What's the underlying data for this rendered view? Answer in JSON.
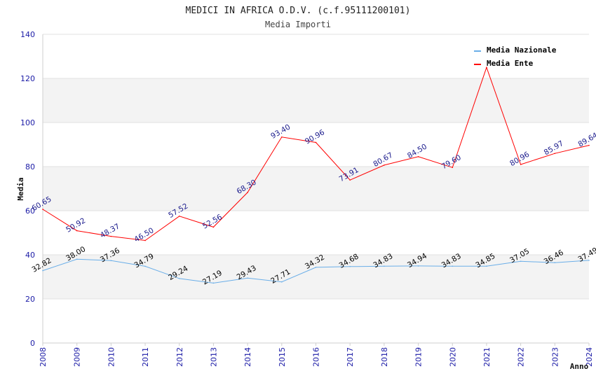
{
  "chart_data": {
    "type": "line",
    "title": "MEDICI IN AFRICA O.D.V. (c.f.95111200101)",
    "subtitle": "Media Importi",
    "xlabel": "Anno",
    "ylabel": "Media",
    "categories": [
      "2008",
      "2009",
      "2010",
      "2011",
      "2012",
      "2013",
      "2014",
      "2015",
      "2016",
      "2017",
      "2018",
      "2019",
      "2020",
      "2021",
      "2022",
      "2023",
      "2024"
    ],
    "ylim": [
      0,
      140
    ],
    "yticks": [
      0,
      20,
      40,
      60,
      80,
      100,
      120,
      140
    ],
    "grid": "horizontal alternating bands",
    "legend_position": "top-right",
    "series": [
      {
        "name": "Media Nazionale",
        "color": "#6aaee8",
        "label_color": "#000000",
        "values": [
          32.82,
          38.0,
          37.36,
          34.79,
          29.24,
          27.19,
          29.43,
          27.71,
          34.32,
          34.68,
          34.83,
          34.94,
          34.83,
          34.85,
          37.05,
          36.46,
          37.49
        ],
        "labels": [
          "32.82",
          "38.00",
          "37.36",
          "34.79",
          "29.24",
          "27.19",
          "29.43",
          "27.71",
          "34.32",
          "34.68",
          "34.83",
          "34.94",
          "34.83",
          "34.85",
          "37.05",
          "36.46",
          "37.49"
        ]
      },
      {
        "name": "Media Ente",
        "color": "#ff0000",
        "label_color": "#1a1a8c",
        "values": [
          60.65,
          50.92,
          48.37,
          46.5,
          57.52,
          52.56,
          68.3,
          93.4,
          90.96,
          73.91,
          80.67,
          84.5,
          79.6,
          125,
          80.96,
          85.97,
          89.64
        ],
        "labels": [
          "60.65",
          "50.92",
          "48.37",
          "46.50",
          "57.52",
          "52.56",
          "68.30",
          "93.40",
          "90.96",
          "73.91",
          "80.67",
          "84.50",
          "79.60",
          "",
          "80.96",
          "85.97",
          "89.64"
        ]
      }
    ]
  }
}
